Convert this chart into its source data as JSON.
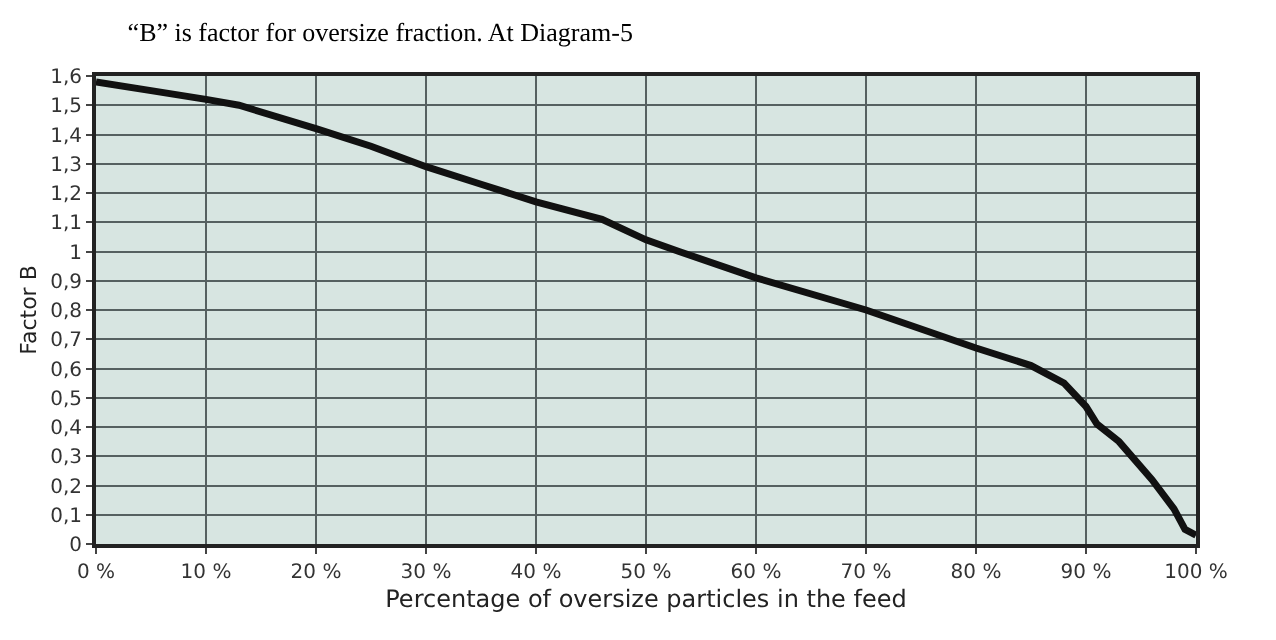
{
  "chart_data": {
    "type": "line",
    "title": "“B” is factor for oversize fraction. At Diagram-5",
    "xlabel": "Percentage of oversize particles in the feed",
    "ylabel": "Factor B",
    "x": [
      0,
      5,
      10,
      13,
      20,
      25,
      30,
      35,
      40,
      46,
      50,
      53,
      60,
      70,
      80,
      85,
      88,
      90,
      91,
      93,
      96,
      98,
      99,
      100
    ],
    "series": [
      {
        "color": "#111111",
        "values": [
          1.58,
          1.55,
          1.52,
          1.5,
          1.42,
          1.36,
          1.29,
          1.23,
          1.17,
          1.11,
          1.04,
          1.0,
          0.91,
          0.8,
          0.67,
          0.61,
          0.55,
          0.47,
          0.41,
          0.35,
          0.22,
          0.12,
          0.05,
          0.03
        ]
      }
    ],
    "xlim": [
      0,
      100
    ],
    "ylim": [
      0,
      1.6
    ],
    "xticks": [
      {
        "value": 0,
        "label": "0 %"
      },
      {
        "value": 10,
        "label": "10 %"
      },
      {
        "value": 20,
        "label": "20 %"
      },
      {
        "value": 30,
        "label": "30 %"
      },
      {
        "value": 40,
        "label": "40 %"
      },
      {
        "value": 50,
        "label": "50 %"
      },
      {
        "value": 60,
        "label": "60 %"
      },
      {
        "value": 70,
        "label": "70 %"
      },
      {
        "value": 80,
        "label": "80 %"
      },
      {
        "value": 90,
        "label": "90 %"
      },
      {
        "value": 100,
        "label": "100 %"
      }
    ],
    "yticks": [
      0,
      {
        "value": 0.1,
        "label": "0,1"
      },
      {
        "value": 0.2,
        "label": "0,2"
      },
      {
        "value": 0.3,
        "label": "0,3"
      },
      {
        "value": 0.4,
        "label": "0,4"
      },
      {
        "value": 0.5,
        "label": "0,5"
      },
      {
        "value": 0.6,
        "label": "0,6"
      },
      {
        "value": 0.7,
        "label": "0,7"
      },
      {
        "value": 0.8,
        "label": "0,8"
      },
      {
        "value": 0.9,
        "label": "0,9"
      },
      1,
      {
        "value": 1.1,
        "label": "1,1"
      },
      {
        "value": 1.2,
        "label": "1,2"
      },
      {
        "value": 1.3,
        "label": "1,3"
      },
      {
        "value": 1.4,
        "label": "1,4"
      },
      {
        "value": 1.5,
        "label": "1,5"
      },
      {
        "value": 1.6,
        "label": "1,6"
      }
    ],
    "grid": true,
    "legend": false,
    "marker": "none",
    "line_style": "solid"
  }
}
